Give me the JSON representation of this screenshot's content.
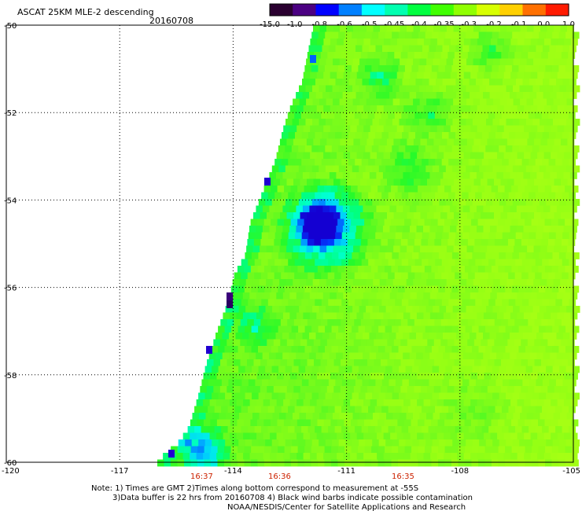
{
  "header": {
    "title": "ASCAT 25KM MLE-2 descending",
    "date": "20160708"
  },
  "colorbar": {
    "labels": [
      "-15.0",
      "-1.0",
      "-0.8",
      "-0.6",
      "-0.5",
      "-0.45",
      "-0.4",
      "-0.35",
      "-0.3",
      "-0.2",
      "-0.1",
      "0.0",
      "1.0"
    ],
    "colors": [
      "#2a0030",
      "#4b0082",
      "#0000ff",
      "#0080ff",
      "#00ffff",
      "#00ffb0",
      "#00ff40",
      "#40ff00",
      "#90ff00",
      "#d8ff00",
      "#ffd000",
      "#ff7000",
      "#ff1a00"
    ]
  },
  "axes": {
    "lat_labels": [
      "-50",
      "-52",
      "-54",
      "-56",
      "-58",
      "-60"
    ],
    "lon_labels": [
      "-120",
      "-117",
      "-114",
      "-111",
      "-108",
      "-105"
    ]
  },
  "times": [
    "16:37",
    "16:36",
    "16:35"
  ],
  "notes": {
    "line1": "Note: 1) Times are GMT 2)Times along bottom correspond to measurement at -55S",
    "line2": "3)Data buffer is 22 hrs from 20160708 4) Black wind barbs indicate possible contamination",
    "line3": "NOAA/NESDIS/Center for Satellite Applications and Research"
  }
}
